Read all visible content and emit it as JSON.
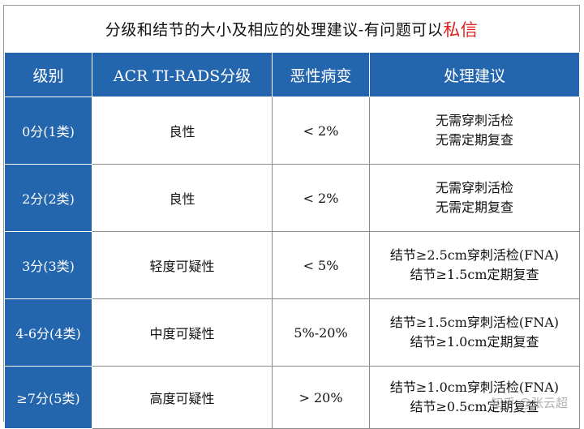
{
  "title": {
    "main": "分级和结节的大小及相应的处理建议-有问题可以",
    "accent": "私信"
  },
  "table": {
    "headers": [
      "级别",
      "ACR TI-RADS分级",
      "恶性病变",
      "处理建议"
    ],
    "rows": [
      {
        "grade": "0分(1类)",
        "classification": "良性",
        "malignancy": "< 2%",
        "advice": [
          "无需穿刺活检",
          "无需定期复查"
        ]
      },
      {
        "grade": "2分(2类)",
        "classification": "良性",
        "malignancy": "< 2%",
        "advice": [
          "无需穿刺活检",
          "无需定期复查"
        ]
      },
      {
        "grade": "3分(3类)",
        "classification": "轻度可疑性",
        "malignancy": "< 5%",
        "advice": [
          "结节≥2.5cm穿刺活检(FNA)",
          "结节≥1.5cm定期复查"
        ]
      },
      {
        "grade": "4-6分(4类)",
        "classification": "中度可疑性",
        "malignancy": "5%-20%",
        "advice": [
          "结节≥1.5cm穿刺活检(FNA)",
          "结节≥1.0cm定期复查"
        ]
      },
      {
        "grade": "≥7分(5类)",
        "classification": "高度可疑性",
        "malignancy": "> 20%",
        "advice": [
          "结节≥1.0cm穿刺活检(FNA)",
          "结节≥0.5cm定期复查"
        ]
      }
    ]
  },
  "watermark": "知乎 @张云超",
  "colors": {
    "header_bg": "#2466ae",
    "accent": "#e02020"
  }
}
